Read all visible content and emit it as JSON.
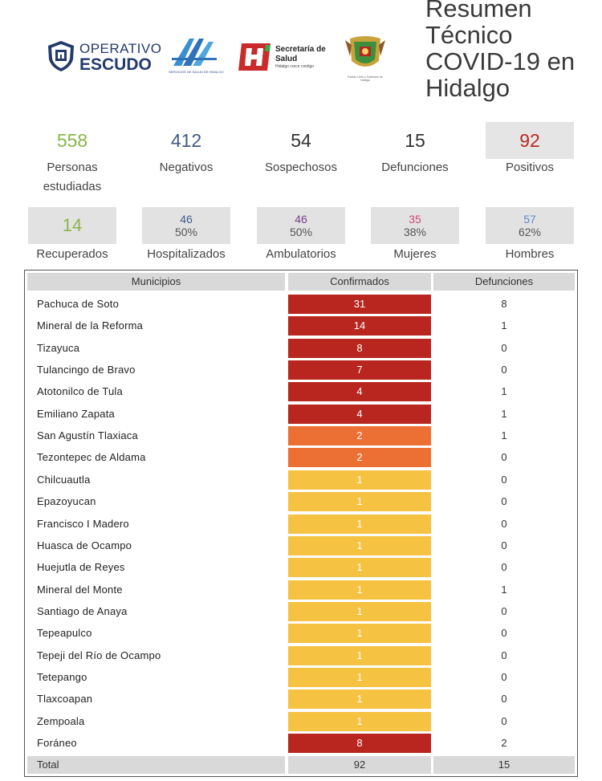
{
  "header": {
    "title": "Resumen Técnico COVID-19 en Hidalgo",
    "logos": {
      "escudo_line1": "OPERATIVO",
      "escudo_line2": "ESCUDO",
      "ssh_caption": "SERVICIOS DE SALUD DE HIDALGO",
      "secretaria_line1": "Secretaría de",
      "secretaria_line2": "Salud",
      "secretaria_line3": "Hidalgo crece contigo",
      "estado_caption": "Estado Libre y Soberano de Hidalgo"
    }
  },
  "stats": [
    {
      "value": "558",
      "label": "Personas estudiadas",
      "color": "#8ab548"
    },
    {
      "value": "412",
      "label": "Negativos",
      "color": "#3e5c8c"
    },
    {
      "value": "54",
      "label": "Sospechosos",
      "color": "#333333"
    },
    {
      "value": "15",
      "label": "Defunciones",
      "color": "#333333"
    },
    {
      "value": "92",
      "label": "Positivos",
      "color": "#b82a22"
    }
  ],
  "boxes": [
    {
      "value": "14",
      "pct": "",
      "label": "Recuperados",
      "color": "#8ab548"
    },
    {
      "value": "46",
      "pct": "50%",
      "label": "Hospitalizados",
      "color": "#3e5c8c"
    },
    {
      "value": "46",
      "pct": "50%",
      "label": "Ambulatorios",
      "color": "#7a3e8c"
    },
    {
      "value": "35",
      "pct": "38%",
      "label": "Mujeres",
      "color": "#d04a7a"
    },
    {
      "value": "57",
      "pct": "62%",
      "label": "Hombres",
      "color": "#5a8ac8"
    }
  ],
  "table": {
    "headers": {
      "municipio": "Municipios",
      "confirmados": "Confirmados",
      "defunciones": "Defunciones"
    },
    "colors": {
      "high": "#b8261f",
      "mid": "#ec6f33",
      "low": "#f5c242"
    },
    "rows": [
      {
        "municipio": "Pachuca de Soto",
        "confirmados": "31",
        "defunciones": "8",
        "level": "high"
      },
      {
        "municipio": "Mineral de la Reforma",
        "confirmados": "14",
        "defunciones": "1",
        "level": "high"
      },
      {
        "municipio": "Tizayuca",
        "confirmados": "8",
        "defunciones": "0",
        "level": "high"
      },
      {
        "municipio": "Tulancingo de Bravo",
        "confirmados": "7",
        "defunciones": "0",
        "level": "high"
      },
      {
        "municipio": "Atotonilco de Tula",
        "confirmados": "4",
        "defunciones": "1",
        "level": "high"
      },
      {
        "municipio": "Emiliano Zapata",
        "confirmados": "4",
        "defunciones": "1",
        "level": "high"
      },
      {
        "municipio": "San Agustín Tlaxiaca",
        "confirmados": "2",
        "defunciones": "1",
        "level": "mid"
      },
      {
        "municipio": "Tezontepec de Aldama",
        "confirmados": "2",
        "defunciones": "0",
        "level": "mid"
      },
      {
        "municipio": "Chilcuautla",
        "confirmados": "1",
        "defunciones": "0",
        "level": "low"
      },
      {
        "municipio": "Epazoyucan",
        "confirmados": "1",
        "defunciones": "0",
        "level": "low"
      },
      {
        "municipio": "Francisco I Madero",
        "confirmados": "1",
        "defunciones": "0",
        "level": "low"
      },
      {
        "municipio": "Huasca de Ocampo",
        "confirmados": "1",
        "defunciones": "0",
        "level": "low"
      },
      {
        "municipio": "Huejutla de Reyes",
        "confirmados": "1",
        "defunciones": "0",
        "level": "low"
      },
      {
        "municipio": "Mineral del Monte",
        "confirmados": "1",
        "defunciones": "1",
        "level": "low"
      },
      {
        "municipio": "Santiago de Anaya",
        "confirmados": "1",
        "defunciones": "0",
        "level": "low"
      },
      {
        "municipio": "Tepeapulco",
        "confirmados": "1",
        "defunciones": "0",
        "level": "low"
      },
      {
        "municipio": "Tepeji del Río de Ocampo",
        "confirmados": "1",
        "defunciones": "0",
        "level": "low"
      },
      {
        "municipio": "Tetepango",
        "confirmados": "1",
        "defunciones": "0",
        "level": "low"
      },
      {
        "municipio": "Tlaxcoapan",
        "confirmados": "1",
        "defunciones": "0",
        "level": "low"
      },
      {
        "municipio": "Zempoala",
        "confirmados": "1",
        "defunciones": "0",
        "level": "low"
      },
      {
        "municipio": "Foráneo",
        "confirmados": "8",
        "defunciones": "2",
        "level": "high"
      }
    ],
    "total": {
      "label": "Total",
      "confirmados": "92",
      "defunciones": "15"
    }
  }
}
